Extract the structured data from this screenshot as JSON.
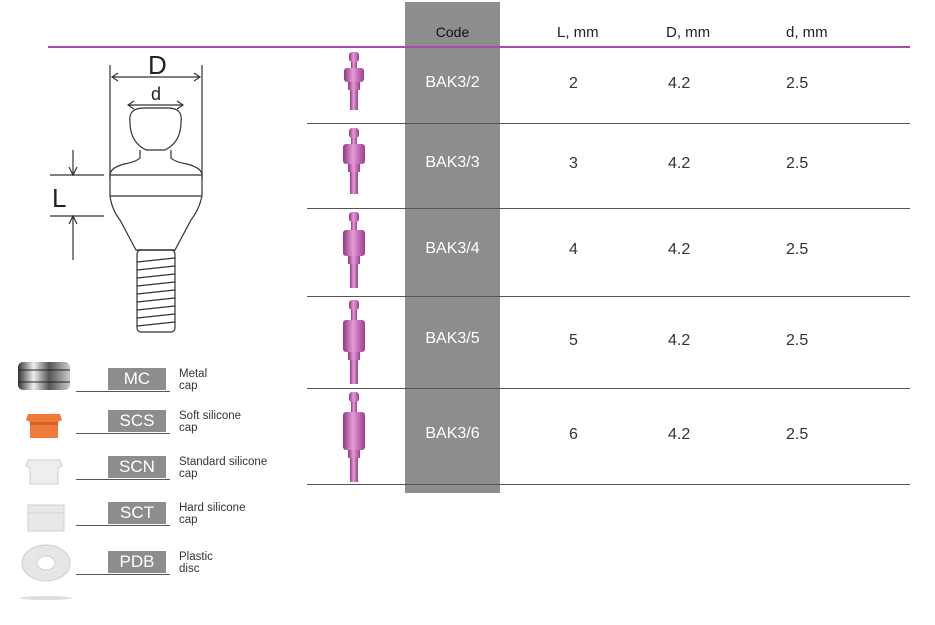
{
  "table": {
    "headers": {
      "code": "Code",
      "l": "L, mm",
      "d_big": "D, mm",
      "d_small": "d, mm"
    },
    "rows": [
      {
        "code": "BAK3/2",
        "l": "2",
        "d_big": "4.2",
        "d_small": "2.5"
      },
      {
        "code": "BAK3/3",
        "l": "3",
        "d_big": "4.2",
        "d_small": "2.5"
      },
      {
        "code": "BAK3/4",
        "l": "4",
        "d_big": "4.2",
        "d_small": "2.5"
      },
      {
        "code": "BAK3/5",
        "l": "5",
        "d_big": "4.2",
        "d_small": "2.5"
      },
      {
        "code": "BAK3/6",
        "l": "6",
        "d_big": "4.2",
        "d_small": "2.5"
      }
    ]
  },
  "diagram": {
    "label_D": "D",
    "label_d": "d",
    "label_L": "L"
  },
  "caps": [
    {
      "code": "MC",
      "line1": "Metal",
      "line2": "cap"
    },
    {
      "code": "SCS",
      "line1": "Soft silicone",
      "line2": "cap"
    },
    {
      "code": "SCN",
      "line1": "Standard silicone",
      "line2": "cap"
    },
    {
      "code": "SCT",
      "line1": "Hard silicone",
      "line2": "cap"
    },
    {
      "code": "PDB",
      "line1": "Plastic",
      "line2": "disc"
    }
  ],
  "colors": {
    "accent": "#a64ca6",
    "code_bg": "#8d8d8d",
    "implant": "#c45fb0"
  }
}
